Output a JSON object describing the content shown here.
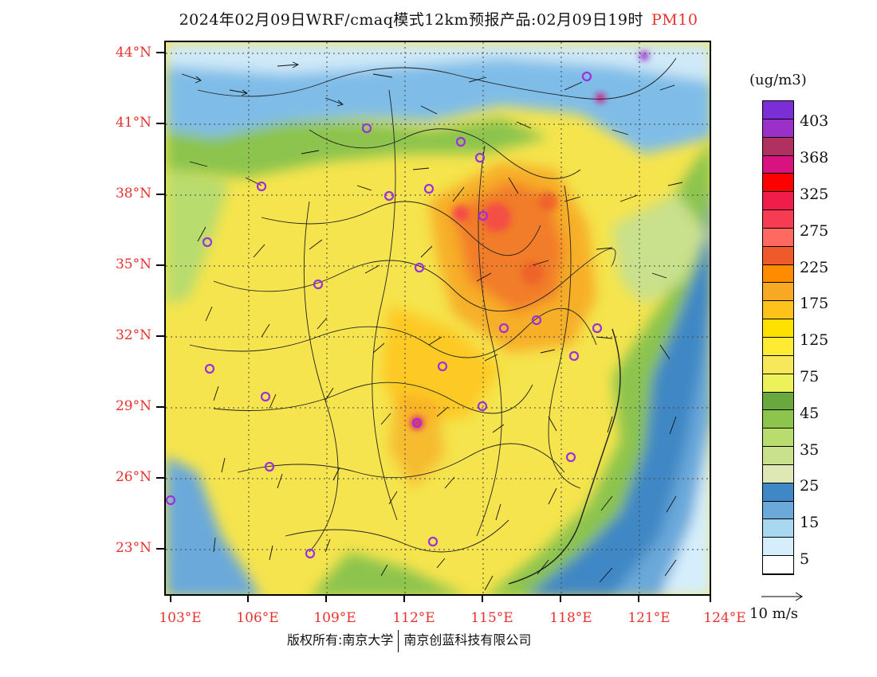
{
  "title": {
    "text": "2024年02月09日WRF/cmaq模式12km预报产品:02月09日19时",
    "pollutant": "PM10"
  },
  "axes": {
    "latitudes": [
      "44°N",
      "41°N",
      "38°N",
      "35°N",
      "32°N",
      "29°N",
      "26°N",
      "23°N"
    ],
    "longitudes": [
      "103°E",
      "106°E",
      "109°E",
      "112°E",
      "115°E",
      "118°E",
      "121°E",
      "124°E"
    ]
  },
  "colorbar": {
    "unit": "(ug/m3)",
    "labels": [
      "403",
      "368",
      "325",
      "275",
      "225",
      "175",
      "125",
      "75",
      "45",
      "35",
      "25",
      "15",
      "5"
    ],
    "colors": [
      "#7b2ed6",
      "#9b30c8",
      "#b0305f",
      "#d8127e",
      "#ff0000",
      "#f01c4a",
      "#f53c52",
      "#ff6a60",
      "#ef5a2a",
      "#ff8c00",
      "#f7a924",
      "#ffc21a",
      "#ffe100",
      "#ffec32",
      "#f6e85a",
      "#eef25a",
      "#68a83c",
      "#8cc44e",
      "#b8dc6e",
      "#c9e08c",
      "#dde8b4",
      "#3f88c5",
      "#6aa9da",
      "#a8d8f0",
      "#d6eefb",
      "#ffffff"
    ]
  },
  "wind_reference": "10 m/s",
  "copyright": {
    "left": "版权所有:南京大学",
    "right": "南京创蓝科技有限公司"
  },
  "colors": {
    "accent_red": "#e8322e",
    "station_marker": "#9b30e0"
  },
  "stations_count_visible": 26
}
